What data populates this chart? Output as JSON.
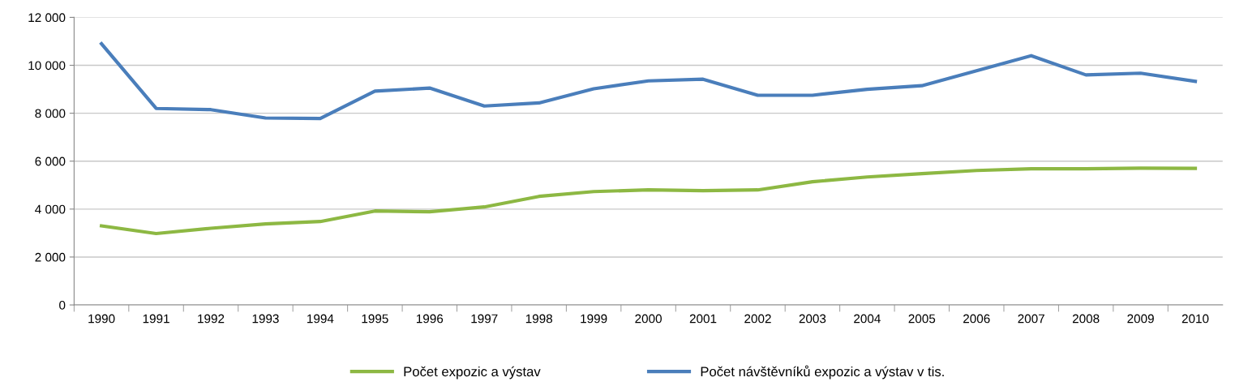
{
  "chart_data": {
    "type": "line",
    "categories": [
      "1990",
      "1991",
      "1992",
      "1993",
      "1994",
      "1995",
      "1996",
      "1997",
      "1998",
      "1999",
      "2000",
      "2001",
      "2002",
      "2003",
      "2004",
      "2005",
      "2006",
      "2007",
      "2008",
      "2009",
      "2010"
    ],
    "series": [
      {
        "name": "Počet expozic a výstav",
        "color": "#8db843",
        "values": [
          3300,
          2980,
          3200,
          3380,
          3480,
          3920,
          3890,
          4090,
          4530,
          4730,
          4800,
          4770,
          4800,
          5140,
          5340,
          5480,
          5610,
          5680,
          5680,
          5710,
          5700
        ]
      },
      {
        "name": "Počet návštěvníků expozic a výstav v tis.",
        "color": "#4a7ebb",
        "values": [
          10900,
          8200,
          8150,
          7800,
          7780,
          8920,
          9050,
          8300,
          8430,
          9020,
          9350,
          9420,
          8750,
          8750,
          9000,
          9150,
          9770,
          10400,
          9600,
          9670,
          9330
        ]
      }
    ],
    "ylim": [
      0,
      12000
    ],
    "yticks": [
      {
        "value": 0,
        "label": "0"
      },
      {
        "value": 2000,
        "label": "2 000"
      },
      {
        "value": 4000,
        "label": "4 000"
      },
      {
        "value": 6000,
        "label": "6 000"
      },
      {
        "value": 8000,
        "label": "8 000"
      },
      {
        "value": 10000,
        "label": "10 000"
      },
      {
        "value": 12000,
        "label": "12 000"
      }
    ],
    "grid": "y",
    "legend": "bottom",
    "marker": "none",
    "line_style": "solid"
  }
}
